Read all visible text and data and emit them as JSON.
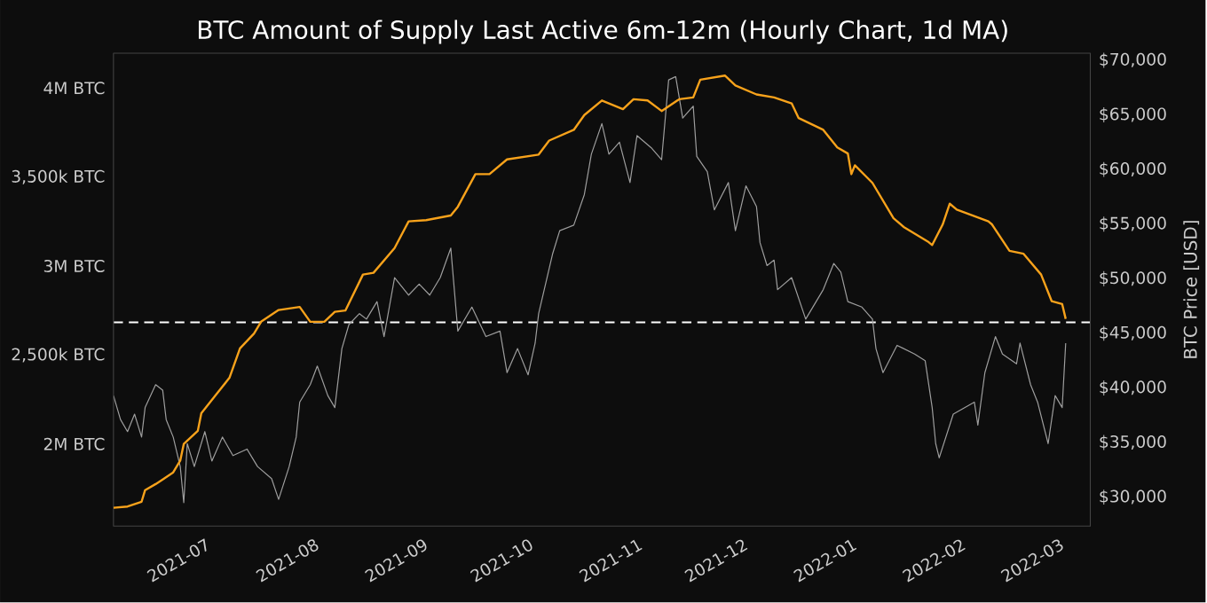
{
  "chart_data": {
    "type": "line",
    "title": "BTC Amount of Supply Last Active 6m-12m (Hourly Chart, 1d MA)",
    "y2label": "BTC Price [USD]",
    "x": [
      "2021-06-04",
      "2021-06-08",
      "2021-06-12",
      "2021-06-13",
      "2021-06-16",
      "2021-06-18",
      "2021-06-21",
      "2021-06-23",
      "2021-06-24",
      "2021-06-28",
      "2021-06-29",
      "2021-07-03",
      "2021-07-07",
      "2021-07-10",
      "2021-07-14",
      "2021-07-16",
      "2021-07-21",
      "2021-07-27",
      "2021-07-30",
      "2021-08-03",
      "2021-08-06",
      "2021-08-09",
      "2021-08-14",
      "2021-08-17",
      "2021-08-23",
      "2021-08-27",
      "2021-09-01",
      "2021-09-08",
      "2021-09-10",
      "2021-09-15",
      "2021-09-19",
      "2021-09-24",
      "2021-10-03",
      "2021-10-06",
      "2021-10-13",
      "2021-10-16",
      "2021-10-21",
      "2021-10-27",
      "2021-10-30",
      "2021-11-03",
      "2021-11-07",
      "2021-11-12",
      "2021-11-16",
      "2021-11-18",
      "2021-11-25",
      "2021-11-28",
      "2021-12-04",
      "2021-12-09",
      "2021-12-14",
      "2021-12-16",
      "2021-12-23",
      "2021-12-27",
      "2021-12-30",
      "2021-12-31",
      "2022-01-01",
      "2022-01-06",
      "2022-01-12",
      "2022-01-15",
      "2022-01-22",
      "2022-01-23",
      "2022-01-26",
      "2022-01-28",
      "2022-01-30",
      "2022-02-08",
      "2022-02-09",
      "2022-02-14",
      "2022-02-18",
      "2022-02-23",
      "2022-02-26",
      "2022-03-01",
      "2022-03-02"
    ],
    "series": [
      {
        "color": "#f7a21b",
        "axis": "y",
        "values": [
          1642000,
          1649000,
          1676000,
          1741000,
          1775000,
          1801000,
          1841000,
          1907000,
          2000000,
          2074000,
          2173000,
          2273000,
          2372000,
          2537000,
          2621000,
          2687000,
          2753000,
          2770000,
          2687000,
          2687000,
          2743000,
          2750000,
          2952000,
          2962000,
          3101000,
          3251000,
          3258000,
          3284000,
          3333000,
          3516000,
          3516000,
          3599000,
          3626000,
          3705000,
          3765000,
          3848000,
          3930000,
          3881000,
          3937000,
          3930000,
          3871000,
          3937000,
          3947000,
          4047000,
          4070000,
          4014000,
          3964000,
          3947000,
          3914000,
          3831000,
          3765000,
          3666000,
          3632000,
          3516000,
          3566000,
          3467000,
          3268000,
          3218000,
          3134000,
          3118000,
          3234000,
          3350000,
          3317000,
          3251000,
          3234000,
          3085000,
          3069000,
          2952000,
          2803000,
          2786000,
          2703000
        ]
      },
      {
        "color": "#9e9e9e",
        "axis": "y2",
        "x": [
          "2021-06-04",
          "2021-06-06",
          "2021-06-08",
          "2021-06-10",
          "2021-06-12",
          "2021-06-13",
          "2021-06-16",
          "2021-06-18",
          "2021-06-19",
          "2021-06-21",
          "2021-06-23",
          "2021-06-24",
          "2021-06-25",
          "2021-06-27",
          "2021-06-30",
          "2021-07-02",
          "2021-07-05",
          "2021-07-08",
          "2021-07-12",
          "2021-07-15",
          "2021-07-19",
          "2021-07-21",
          "2021-07-24",
          "2021-07-26",
          "2021-07-27",
          "2021-07-30",
          "2021-08-01",
          "2021-08-04",
          "2021-08-06",
          "2021-08-08",
          "2021-08-10",
          "2021-08-13",
          "2021-08-15",
          "2021-08-18",
          "2021-08-20",
          "2021-08-23",
          "2021-08-27",
          "2021-08-30",
          "2021-09-02",
          "2021-09-05",
          "2021-09-08",
          "2021-09-10",
          "2021-09-14",
          "2021-09-18",
          "2021-09-22",
          "2021-09-24",
          "2021-09-27",
          "2021-09-30",
          "2021-10-02",
          "2021-10-03",
          "2021-10-07",
          "2021-10-09",
          "2021-10-13",
          "2021-10-16",
          "2021-10-18",
          "2021-10-21",
          "2021-10-23",
          "2021-10-26",
          "2021-10-29",
          "2021-10-31",
          "2021-11-04",
          "2021-11-07",
          "2021-11-09",
          "2021-11-11",
          "2021-11-13",
          "2021-11-16",
          "2021-11-17",
          "2021-11-20",
          "2021-11-22",
          "2021-11-26",
          "2021-11-28",
          "2021-12-01",
          "2021-12-04",
          "2021-12-05",
          "2021-12-07",
          "2021-12-09",
          "2021-12-10",
          "2021-12-14",
          "2021-12-18",
          "2021-12-23",
          "2021-12-26",
          "2021-12-28",
          "2021-12-30",
          "2022-01-03",
          "2022-01-06",
          "2022-01-07",
          "2022-01-09",
          "2022-01-13",
          "2022-01-18",
          "2022-01-21",
          "2022-01-23",
          "2022-01-24",
          "2022-01-25",
          "2022-01-29",
          "2022-02-04",
          "2022-02-05",
          "2022-02-07",
          "2022-02-10",
          "2022-02-12",
          "2022-02-16",
          "2022-02-17",
          "2022-02-20",
          "2022-02-22",
          "2022-02-25",
          "2022-02-27",
          "2022-03-01",
          "2022-03-02"
        ],
        "values": [
          39300,
          37100,
          36000,
          37600,
          35500,
          38200,
          40300,
          39800,
          37100,
          35500,
          32800,
          29500,
          34900,
          32800,
          36000,
          33300,
          35500,
          33800,
          34400,
          32800,
          31700,
          29800,
          32800,
          35500,
          38700,
          40300,
          42000,
          39300,
          38200,
          43600,
          45800,
          46800,
          46300,
          47900,
          44700,
          50100,
          48500,
          49500,
          48500,
          50100,
          52800,
          45200,
          47400,
          44700,
          45200,
          41400,
          43600,
          41200,
          44100,
          46800,
          52300,
          54400,
          54900,
          57700,
          61400,
          64200,
          61400,
          62500,
          58800,
          63100,
          62000,
          60900,
          68200,
          68500,
          64700,
          65800,
          61200,
          59800,
          56300,
          58800,
          54400,
          58500,
          56600,
          53300,
          51200,
          51700,
          49000,
          50100,
          46300,
          49000,
          51400,
          50600,
          47900,
          47400,
          46300,
          43600,
          41400,
          43900,
          43100,
          42500,
          38200,
          34900,
          33600,
          37600,
          38700,
          36600,
          41400,
          44700,
          43100,
          42200,
          44100,
          40300,
          38700,
          34900,
          39300,
          38200,
          44100
        ]
      }
    ],
    "xlim": [
      "2021-06-04",
      "2022-03-09"
    ],
    "xticks": [
      "2021-07",
      "2021-08",
      "2021-09",
      "2021-10",
      "2021-11",
      "2021-12",
      "2022-01",
      "2022-02",
      "2022-03"
    ],
    "ylim": [
      1539000,
      4196000
    ],
    "yticks": [
      {
        "value": 2000000,
        "label": "2M BTC"
      },
      {
        "value": 2500000,
        "label": "2,500k BTC"
      },
      {
        "value": 3000000,
        "label": "3M BTC"
      },
      {
        "value": 3500000,
        "label": "3,500k BTC"
      },
      {
        "value": 4000000,
        "label": "4M BTC"
      }
    ],
    "y2lim": [
      27350,
      70650
    ],
    "y2ticks": [
      {
        "value": 30000,
        "label": "$30,000"
      },
      {
        "value": 35000,
        "label": "$35,000"
      },
      {
        "value": 40000,
        "label": "$40,000"
      },
      {
        "value": 45000,
        "label": "$45,000"
      },
      {
        "value": 50000,
        "label": "$50,000"
      },
      {
        "value": 55000,
        "label": "$55,000"
      },
      {
        "value": 60000,
        "label": "$60,000"
      },
      {
        "value": 65000,
        "label": "$65,000"
      },
      {
        "value": 70000,
        "label": "$70,000"
      }
    ],
    "ref_lines": [
      {
        "axis": "y2",
        "value": 46000,
        "color": "#ffffff",
        "line_style": "dashed"
      }
    ]
  }
}
